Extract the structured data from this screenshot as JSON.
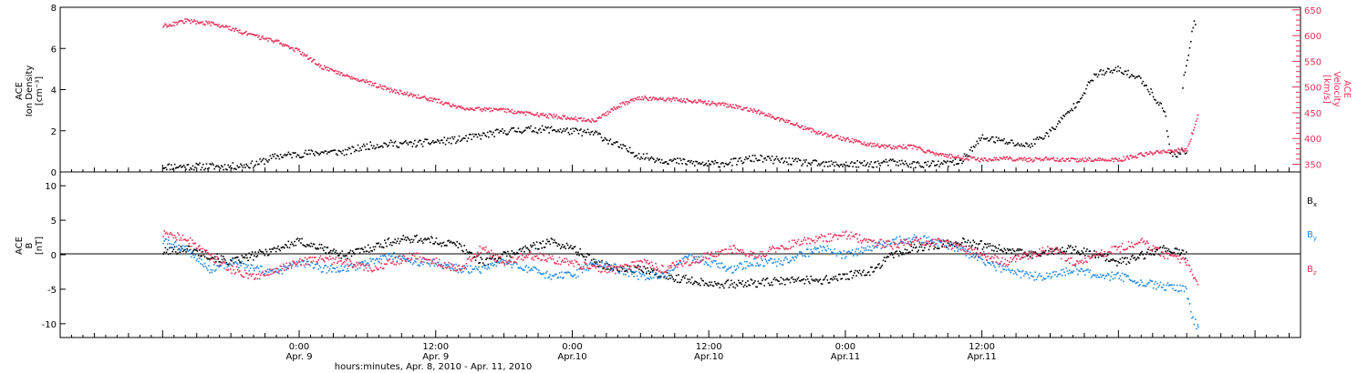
{
  "chart_data": [
    {
      "type": "scatter",
      "panel": "top",
      "ylabel_left": [
        "ACE",
        "Ion Density",
        "[cm⁻³]"
      ],
      "ylabel_right": [
        "ACE",
        "Velocity",
        "[km/s]"
      ],
      "y_left": {
        "range": [
          0,
          8
        ],
        "ticks": [
          "0",
          "2",
          "4",
          "6",
          "8"
        ]
      },
      "y_right": {
        "range": [
          335,
          655
        ],
        "ticks": [
          "350",
          "400",
          "450",
          "500",
          "550",
          "600",
          "650"
        ]
      },
      "colors": {
        "density": "#000000",
        "velocity": "#e8305a"
      },
      "series": [
        {
          "name": "density",
          "axis": "left",
          "hours": [
            0,
            2,
            4,
            6,
            8,
            10,
            12,
            14,
            16,
            18,
            20,
            22,
            24,
            26,
            28,
            30,
            32,
            34,
            36,
            38,
            40,
            42,
            44,
            46,
            48,
            50,
            52,
            54,
            56,
            58,
            60,
            62,
            64,
            66,
            68,
            70,
            72,
            74,
            76,
            78,
            80,
            82,
            84,
            86,
            88,
            88.5,
            89,
            89.5,
            90
          ],
          "values": [
            0.3,
            0.3,
            0.3,
            0.3,
            0.4,
            0.8,
            0.9,
            1.0,
            1.0,
            1.3,
            1.4,
            1.4,
            1.5,
            1.6,
            1.8,
            2.0,
            2.1,
            2.1,
            2.0,
            1.9,
            1.3,
            0.8,
            0.6,
            0.5,
            0.4,
            0.5,
            0.7,
            0.6,
            0.5,
            0.4,
            0.4,
            0.4,
            0.5,
            0.4,
            0.4,
            0.5,
            1.7,
            1.5,
            1.3,
            2.0,
            3.2,
            4.8,
            5.0,
            4.5,
            3.0,
            1.0,
            0.8,
            1.0,
            1.0
          ]
        },
        {
          "name": "density-tail",
          "axis": "left",
          "hours": [
            89.6,
            89.8,
            90.0,
            90.2,
            90.4,
            90.6,
            90.8
          ],
          "values": [
            4.2,
            5.0,
            5.5,
            6.2,
            6.8,
            7.2,
            7.5
          ]
        },
        {
          "name": "velocity",
          "axis": "right",
          "hours": [
            0,
            2,
            4,
            6,
            8,
            10,
            12,
            14,
            16,
            18,
            20,
            22,
            24,
            26,
            28,
            30,
            32,
            34,
            36,
            38,
            40,
            42,
            44,
            46,
            48,
            50,
            52,
            54,
            56,
            58,
            60,
            62,
            64,
            66,
            68,
            70,
            72,
            74,
            76,
            78,
            80,
            82,
            84,
            86,
            88,
            90,
            91
          ],
          "values": [
            620,
            630,
            625,
            615,
            600,
            590,
            570,
            540,
            525,
            510,
            495,
            485,
            475,
            462,
            458,
            456,
            450,
            445,
            440,
            435,
            465,
            480,
            478,
            475,
            470,
            465,
            455,
            440,
            425,
            410,
            400,
            390,
            385,
            385,
            370,
            365,
            360,
            363,
            360,
            361,
            360,
            360,
            360,
            370,
            375,
            380,
            455
          ]
        }
      ]
    },
    {
      "type": "scatter",
      "panel": "bottom",
      "ylabel_left": [
        "ACE",
        "B",
        "[nT]"
      ],
      "y_left": {
        "range": [
          -12,
          12
        ],
        "ticks": [
          "-10",
          "-5",
          "0",
          "5",
          "10"
        ]
      },
      "legend": [
        "Bx",
        "By",
        "Bz"
      ],
      "colors": {
        "Bx": "#000000",
        "By": "#1e88e5",
        "Bz": "#e8305a"
      },
      "series": [
        {
          "name": "Bx",
          "hours": [
            0,
            2,
            4,
            6,
            8,
            10,
            12,
            14,
            16,
            18,
            20,
            22,
            24,
            26,
            28,
            30,
            32,
            34,
            36,
            38,
            40,
            42,
            44,
            46,
            48,
            50,
            52,
            54,
            56,
            58,
            60,
            62,
            64,
            66,
            68,
            70,
            72,
            74,
            76,
            78,
            80,
            82,
            84,
            86,
            88,
            90
          ],
          "values": [
            0.5,
            1,
            0,
            -1,
            0,
            1,
            2,
            1,
            0,
            1,
            2,
            2.5,
            2,
            1.5,
            -1,
            0,
            1,
            2,
            1,
            -1,
            -2,
            -2,
            -3,
            -3.5,
            -4,
            -4.2,
            -4,
            -3.8,
            -3.5,
            -3.6,
            -3,
            -2.5,
            0,
            1,
            1.5,
            2,
            1.5,
            1,
            0,
            0.5,
            1,
            0,
            -1,
            0,
            1,
            0
          ]
        },
        {
          "name": "By",
          "hours": [
            0,
            2,
            4,
            6,
            8,
            10,
            12,
            14,
            16,
            18,
            20,
            22,
            24,
            26,
            28,
            30,
            32,
            34,
            36,
            38,
            40,
            42,
            44,
            46,
            48,
            50,
            52,
            54,
            56,
            58,
            60,
            62,
            64,
            66,
            68,
            70,
            72,
            74,
            76,
            78,
            80,
            82,
            84,
            86,
            88,
            90
          ],
          "values": [
            2,
            1,
            -2,
            -1,
            -2,
            -2.5,
            -1,
            -2,
            -2,
            -1,
            0,
            -1,
            -1,
            -2,
            -2,
            -1,
            -2,
            -3,
            -3,
            -1,
            -2,
            -3,
            -3,
            0,
            -1,
            -2,
            -1,
            -1,
            0,
            1,
            0,
            1,
            2,
            2.5,
            2,
            1,
            -1,
            -2,
            -3,
            -3,
            -2,
            -3,
            -3,
            -4,
            -4.5,
            -5
          ]
        },
        {
          "name": "By-tail",
          "hours": [
            90.0,
            90.3,
            90.6,
            90.9,
            91.0
          ],
          "values": [
            -6,
            -8,
            -9.5,
            -10.5,
            -10
          ]
        },
        {
          "name": "Bz",
          "hours": [
            0,
            2,
            4,
            6,
            8,
            10,
            12,
            14,
            16,
            18,
            20,
            22,
            24,
            26,
            28,
            30,
            32,
            34,
            36,
            38,
            40,
            42,
            44,
            46,
            48,
            50,
            52,
            54,
            56,
            58,
            60,
            62,
            64,
            66,
            68,
            70,
            72,
            74,
            76,
            78,
            80,
            82,
            84,
            86,
            88,
            90,
            91
          ],
          "values": [
            3,
            2.5,
            0,
            -2,
            -3,
            -2,
            -1,
            -0.5,
            -1,
            -2,
            -1,
            0,
            -1,
            -2,
            1,
            -1,
            0,
            -0.5,
            -1,
            -2,
            -2,
            -1,
            -2,
            -1,
            0,
            1,
            0,
            1,
            2,
            2.5,
            3,
            2,
            1.5,
            2,
            2,
            1,
            0,
            -1,
            0,
            1,
            -1,
            0,
            1,
            2,
            0,
            -1,
            -5
          ]
        }
      ]
    }
  ],
  "legend": {
    "bx": "B",
    "bx_sub": "x",
    "by": "B",
    "by_sub": "y",
    "bz": "B",
    "bz_sub": "z"
  },
  "x_axis": {
    "range_hours": [
      -9.0,
      100.0
    ],
    "ticks": [
      {
        "hours": 12,
        "time": "0:00",
        "date": "Apr. 9"
      },
      {
        "hours": 24,
        "time": "12:00",
        "date": "Apr. 9"
      },
      {
        "hours": 36,
        "time": "0:00",
        "date": "Apr.10"
      },
      {
        "hours": 48,
        "time": "12:00",
        "date": "Apr.10"
      },
      {
        "hours": 60,
        "time": "0:00",
        "date": "Apr.11"
      },
      {
        "hours": 72,
        "time": "12:00",
        "date": "Apr.11"
      }
    ],
    "label": "hours:minutes, Apr.  8, 2010 - Apr. 11, 2010"
  }
}
